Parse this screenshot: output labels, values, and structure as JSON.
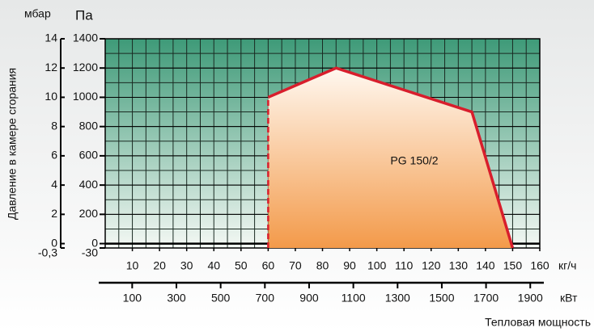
{
  "chart_data": {
    "type": "area",
    "annotation": "PG 150/2",
    "y_unit_left": "мбар",
    "y_unit": "Па",
    "ylabel": "Давление в камере сгорания",
    "x_unit": "кг/ч",
    "x2_unit": "кВт",
    "xlabel": "Тепловая мощность",
    "series": [
      {
        "name": "PG 150/2",
        "color": "#d81e2c",
        "x": [
          60,
          60,
          85,
          135,
          150
        ],
        "values": [
          -30,
          1000,
          1200,
          900,
          -30
        ]
      }
    ],
    "xlim": [
      0,
      160
    ],
    "xticks": [
      10,
      20,
      30,
      40,
      50,
      60,
      70,
      80,
      90,
      100,
      110,
      120,
      130,
      140,
      150,
      160
    ],
    "x2lim": [
      -22,
      1943
    ],
    "x2ticks": [
      100,
      300,
      500,
      700,
      900,
      1100,
      1300,
      1500,
      1700,
      1900
    ],
    "ylim": [
      -30,
      1400
    ],
    "yticks": [
      -30,
      0,
      200,
      400,
      600,
      800,
      1000,
      1200,
      1400
    ],
    "y2lim": [
      -0.3,
      14
    ],
    "y2ticks": [
      {
        "value": -0.3,
        "label": "-0,3"
      },
      0,
      2,
      4,
      6,
      8,
      10,
      12,
      14
    ],
    "grid": true,
    "grid_subdivisions": 2
  }
}
